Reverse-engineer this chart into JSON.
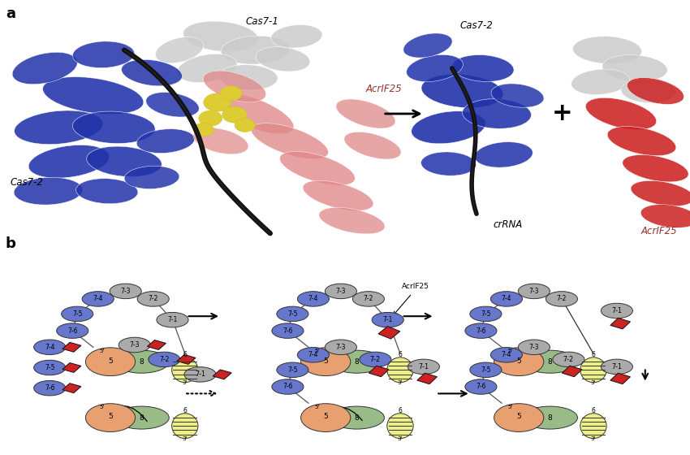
{
  "background_color": "#ffffff",
  "fig_width": 8.5,
  "fig_height": 5.6,
  "colors": {
    "blue": "#5566bb",
    "blue_dark": "#2233aa",
    "gray": "#aaaaaa",
    "gray_light": "#cccccc",
    "green": "#aaccaa",
    "peach": "#e8a880",
    "yellow": "#eeee88",
    "red": "#cc2222",
    "pink": "#e08888",
    "pink_light": "#f0b0b0",
    "black": "#111111",
    "yellow_sphere": "#ddcc33",
    "white": "#ffffff"
  },
  "labels": {
    "panel_a": "a",
    "panel_b": "b",
    "cas71": "Cas7-1",
    "cas72_left": "Cas7-2",
    "acrif25_left": "AcrIF25",
    "cas72_right": "Cas7-2",
    "crRNA": "crRNA",
    "acrif25_right": "AcrIF25",
    "acrif25_label": "AcrIF25",
    "plus": "+"
  }
}
